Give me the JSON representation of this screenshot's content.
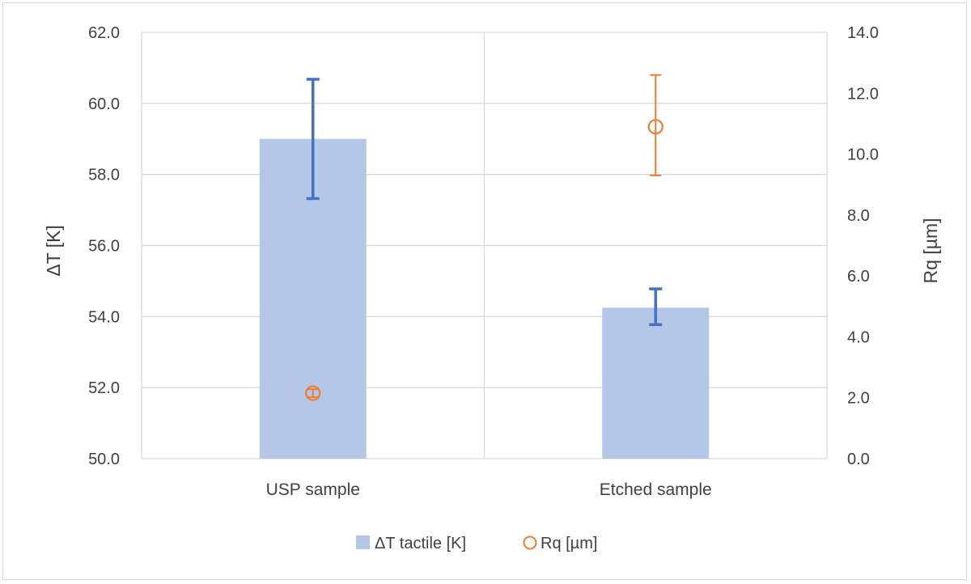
{
  "chart_data": {
    "type": "bar",
    "categories": [
      "USP sample",
      "Etched sample"
    ],
    "series": [
      {
        "name": "ΔT tactile [K]",
        "kind": "bar",
        "axis": "left",
        "color": "#b4c7e7",
        "error_color": "#4472c4",
        "values": [
          59.0,
          54.25
        ],
        "error_low": [
          57.32,
          53.77
        ],
        "error_high": [
          60.68,
          54.78
        ]
      },
      {
        "name": "Rq [µm]",
        "kind": "marker",
        "marker": "open-circle",
        "axis": "right",
        "color": "#ed7d31",
        "values": [
          2.15,
          10.9
        ],
        "error_low": [
          2.02,
          9.3
        ],
        "error_high": [
          2.28,
          12.6
        ]
      }
    ],
    "y_left": {
      "label": "ΔT [K]",
      "range": [
        50,
        62
      ],
      "ticks": [
        "50.0",
        "52.0",
        "54.0",
        "56.0",
        "58.0",
        "60.0",
        "62.0"
      ]
    },
    "y_right": {
      "label": "Rq [µm]",
      "range": [
        0,
        14
      ],
      "ticks": [
        "0.0",
        "2.0",
        "4.0",
        "6.0",
        "8.0",
        "10.0",
        "12.0",
        "14.0"
      ]
    },
    "grid": true,
    "legend_position": "bottom"
  }
}
